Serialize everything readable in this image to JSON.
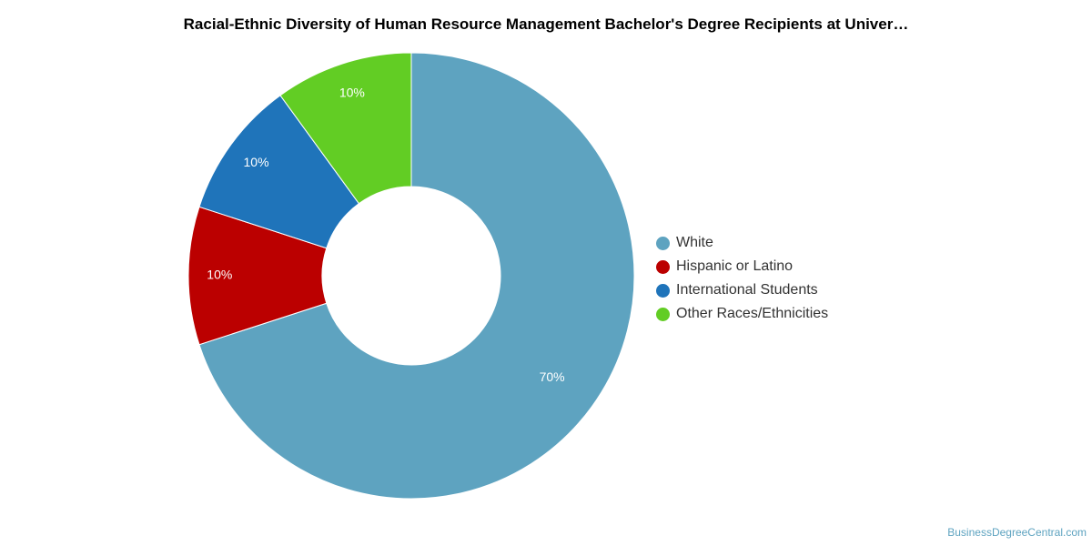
{
  "chart_data": {
    "type": "pie",
    "title": "Racial-Ethnic Diversity of Human Resource Management Bachelor's Degree Recipients at Univer…",
    "donut": true,
    "categories": [
      "White",
      "Hispanic or Latino",
      "International Students",
      "Other Races/Ethnicities"
    ],
    "values": [
      70,
      10,
      10,
      10
    ],
    "labels": [
      "70%",
      "10%",
      "10%",
      "10%"
    ],
    "colors": [
      "#5ea3c0",
      "#bb0000",
      "#1f74ba",
      "#62cd24"
    ],
    "legend_position": "right"
  },
  "watermark": "BusinessDegreeCentral.com"
}
